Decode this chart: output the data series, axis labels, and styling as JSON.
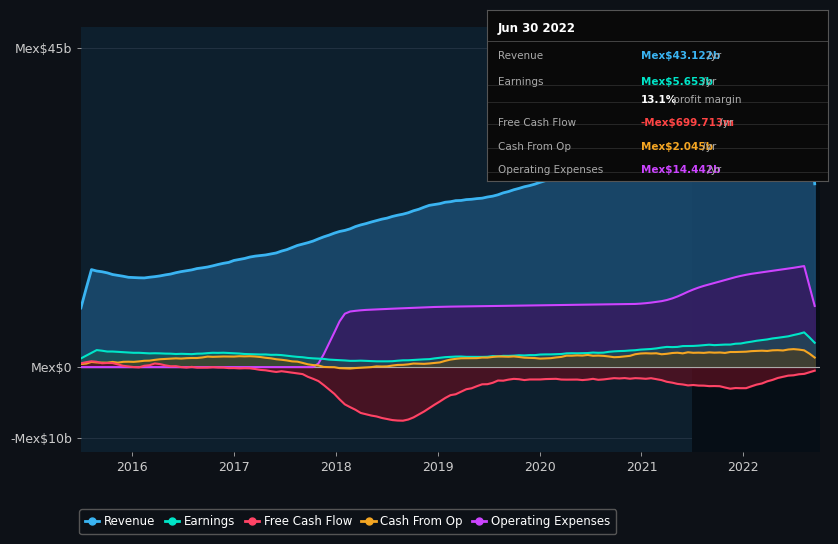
{
  "bg_color": "#0d1117",
  "plot_bg_color": "#0d1f2d",
  "title": "Jun 30 2022",
  "info_box_rows": [
    {
      "label": "Revenue",
      "value": "Mex$43.122b",
      "suffix": " /yr",
      "value_color": "#3ab4f2"
    },
    {
      "label": "Earnings",
      "value": "Mex$5.653b",
      "suffix": " /yr",
      "value_color": "#00e5c8"
    },
    {
      "label": "",
      "value": "13.1%",
      "suffix": " profit margin",
      "value_color": "#ffffff"
    },
    {
      "label": "Free Cash Flow",
      "value": "-Mex$699.713m",
      "suffix": " /yr",
      "value_color": "#ff4444"
    },
    {
      "label": "Cash From Op",
      "value": "Mex$2.045b",
      "suffix": " /yr",
      "value_color": "#f5a623"
    },
    {
      "label": "Operating Expenses",
      "value": "Mex$14.442b",
      "suffix": " /yr",
      "value_color": "#cc44ff"
    }
  ],
  "ylim": [
    -12,
    48
  ],
  "yticks": [
    -10,
    0,
    45
  ],
  "ytick_labels": [
    "-Mex$10b",
    "Mex$0",
    "Mex$45b"
  ],
  "xlim_start": 2015.5,
  "xlim_end": 2022.75,
  "xticks": [
    2016,
    2017,
    2018,
    2019,
    2020,
    2021,
    2022
  ],
  "series": {
    "revenue": {
      "color": "#3ab4f2",
      "fill_color": "#1a4a6e",
      "lw": 2.0
    },
    "earnings": {
      "color": "#00e5c8",
      "fill_color": "#1a5a50",
      "lw": 1.5
    },
    "free_cash_flow": {
      "color": "#ff4466",
      "fill_color": "#5a1020",
      "lw": 1.5
    },
    "cash_from_op": {
      "color": "#f5a623",
      "fill_color": "#5a4010",
      "lw": 1.5
    },
    "operating_expenses": {
      "color": "#cc44ff",
      "fill_color": "#3a1560",
      "lw": 1.5
    }
  },
  "legend": [
    {
      "label": "Revenue",
      "color": "#3ab4f2"
    },
    {
      "label": "Earnings",
      "color": "#00e5c8"
    },
    {
      "label": "Free Cash Flow",
      "color": "#ff4466"
    },
    {
      "label": "Cash From Op",
      "color": "#f5a623"
    },
    {
      "label": "Operating Expenses",
      "color": "#cc44ff"
    }
  ],
  "highlight_x_start": 2021.5,
  "highlight_x_end": 2022.75,
  "highlight_color": "#060e16"
}
